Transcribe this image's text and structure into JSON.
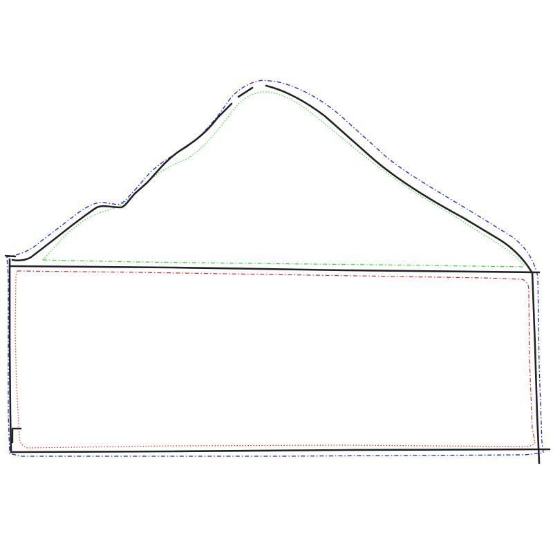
{
  "colors": {
    "background": "#ffffff",
    "sketch": "#222222",
    "outer_outline": "#1a1aff",
    "roof_outline": "#22dd22",
    "body_outline": "#dd2222"
  },
  "shapes": [
    {
      "name": "sketch-roof-line",
      "kind": "hand-drawn stroke"
    },
    {
      "name": "sketch-rectangle",
      "kind": "hand-drawn stroke"
    },
    {
      "name": "outer-boundary-outline",
      "kind": "dash-dot outline"
    },
    {
      "name": "roof-region-outline",
      "kind": "dotted / dash-dot outline"
    },
    {
      "name": "body-region-outline",
      "kind": "dash-dot / dotted outline"
    }
  ]
}
